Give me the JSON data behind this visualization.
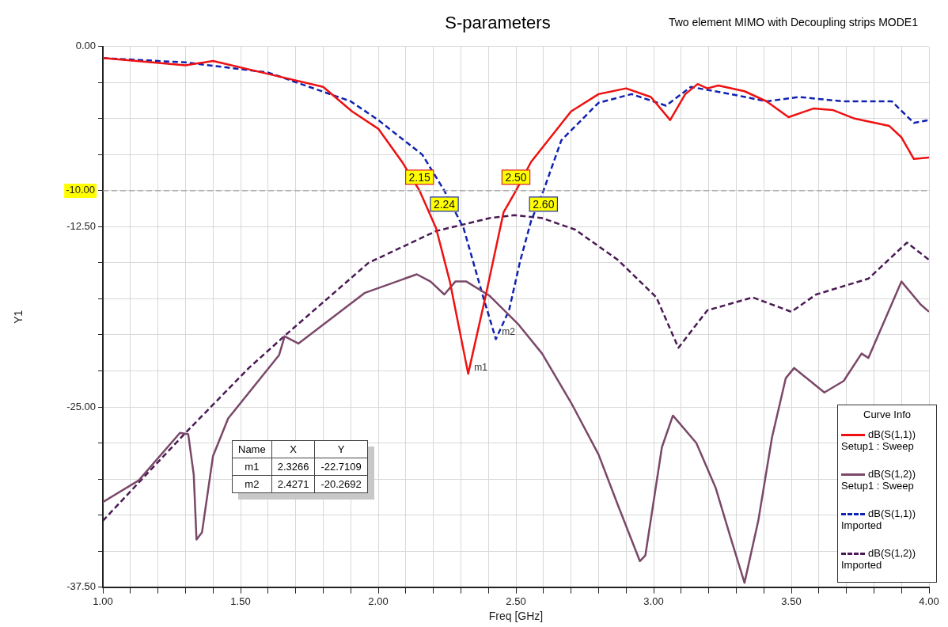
{
  "chart_data": {
    "type": "line",
    "title": "S-parameters",
    "subtitle": "Two element MIMO with Decoupling strips MODE1",
    "xlabel": "Freq [GHz]",
    "ylabel": "Y1",
    "legend_title": "Curve Info",
    "legend": "bottom right",
    "grid": true,
    "xlim": [
      1,
      4
    ],
    "ylim": [
      -37.5,
      0
    ],
    "xticks": [
      {
        "value": 1,
        "label": "1.00"
      },
      {
        "value": 1.1,
        "label": null
      },
      {
        "value": 1.2,
        "label": null
      },
      {
        "value": 1.3,
        "label": null
      },
      {
        "value": 1.4,
        "label": null
      },
      {
        "value": 1.5,
        "label": "1.50"
      },
      {
        "value": 1.6,
        "label": null
      },
      {
        "value": 1.7,
        "label": null
      },
      {
        "value": 1.8,
        "label": null
      },
      {
        "value": 1.9,
        "label": null
      },
      {
        "value": 2,
        "label": "2.00"
      },
      {
        "value": 2.1,
        "label": null
      },
      {
        "value": 2.2,
        "label": null
      },
      {
        "value": 2.3,
        "label": null
      },
      {
        "value": 2.4,
        "label": null
      },
      {
        "value": 2.5,
        "label": "2.50"
      },
      {
        "value": 2.6,
        "label": null
      },
      {
        "value": 2.7,
        "label": null
      },
      {
        "value": 2.8,
        "label": null
      },
      {
        "value": 2.9,
        "label": null
      },
      {
        "value": 3,
        "label": "3.00"
      },
      {
        "value": 3.1,
        "label": null
      },
      {
        "value": 3.2,
        "label": null
      },
      {
        "value": 3.3,
        "label": null
      },
      {
        "value": 3.4,
        "label": null
      },
      {
        "value": 3.5,
        "label": "3.50"
      },
      {
        "value": 3.6,
        "label": null
      },
      {
        "value": 3.7,
        "label": null
      },
      {
        "value": 3.8,
        "label": null
      },
      {
        "value": 3.9,
        "label": null
      },
      {
        "value": 4,
        "label": "4.00"
      }
    ],
    "yticks": [
      {
        "value": 0,
        "label": "0.00"
      },
      {
        "value": -2.5,
        "label": null
      },
      {
        "value": -5,
        "label": null
      },
      {
        "value": -7.5,
        "label": null
      },
      {
        "value": -10,
        "label": null
      },
      {
        "value": -12.5,
        "label": "-12.50"
      },
      {
        "value": -15,
        "label": null
      },
      {
        "value": -17.5,
        "label": null
      },
      {
        "value": -20,
        "label": null
      },
      {
        "value": -22.5,
        "label": null
      },
      {
        "value": -25,
        "label": "-25.00"
      },
      {
        "value": -27.5,
        "label": null
      },
      {
        "value": -30,
        "label": null
      },
      {
        "value": -32.5,
        "label": null
      },
      {
        "value": -35,
        "label": null
      },
      {
        "value": -37.5,
        "label": "-37.50"
      }
    ],
    "ref_lines": [
      {
        "axis": "y",
        "value": -10,
        "label": "-10.00",
        "color": "#a0a0a0",
        "line_style": "dashed"
      }
    ],
    "annotations": [
      {
        "text": "2.15",
        "x": 2.15,
        "y": -10
      },
      {
        "text": "2.24",
        "x": 2.24,
        "y": -10
      },
      {
        "text": "2.50",
        "x": 2.5,
        "y": -10
      },
      {
        "text": "2.60",
        "x": 2.6,
        "y": -10
      },
      {
        "text": "m1",
        "x": 2.3266,
        "y": -22.7109
      },
      {
        "text": "m2",
        "x": 2.4271,
        "y": -20.2692
      },
      "Name",
      "X",
      "Y",
      "m1",
      "2.3266",
      "-22.7109",
      "m2",
      "2.4271",
      "-20.2692"
    ],
    "series": [
      {
        "name": "dB(S(1,1))\nSetup1 : Sweep",
        "color": "#ee1111",
        "line_style": "solid",
        "x": [
          1,
          1.3,
          1.4,
          1.6,
          1.8,
          1.905,
          2,
          2.09,
          2.15,
          2.21,
          2.26,
          2.3266,
          2.39,
          2.455,
          2.5,
          2.555,
          2.7,
          2.8,
          2.9,
          2.99,
          3.06,
          3.115,
          3.16,
          3.195,
          3.235,
          3.33,
          3.41,
          3.49,
          3.58,
          3.65,
          3.73,
          3.855,
          3.9,
          3.945,
          4
        ],
        "values": [
          -0.8,
          -1.3,
          -1,
          -1.9,
          -2.8,
          -4.5,
          -5.7,
          -8.1,
          -10,
          -12.6,
          -16.3,
          -22.7,
          -17.3,
          -11.5,
          -10,
          -8,
          -4.5,
          -3.3,
          -2.9,
          -3.5,
          -5.1,
          -3.3,
          -2.6,
          -2.9,
          -2.7,
          -3.1,
          -3.8,
          -4.9,
          -4.3,
          -4.4,
          -5,
          -5.5,
          -6.3,
          -7.8,
          -7.7
        ]
      },
      {
        "name": "dB(S(1,2))\nSetup1 : Sweep",
        "color": "#7a4868",
        "line_style": "solid",
        "x": [
          1,
          1.13,
          1.28,
          1.31,
          1.33,
          1.34,
          1.36,
          1.4,
          1.455,
          1.64,
          1.66,
          1.71,
          1.95,
          2.14,
          2.19,
          2.24,
          2.28,
          2.32,
          2.405,
          2.51,
          2.595,
          2.7,
          2.8,
          2.87,
          2.95,
          2.97,
          3.03,
          3.07,
          3.155,
          3.225,
          3.28,
          3.33,
          3.38,
          3.43,
          3.48,
          3.51,
          3.62,
          3.69,
          3.755,
          3.78,
          3.9,
          3.97,
          4
        ],
        "values": [
          -31.6,
          -30.1,
          -26.8,
          -26.9,
          -29.7,
          -34.2,
          -33.7,
          -28.4,
          -25.8,
          -21.4,
          -20.1,
          -20.6,
          -17.1,
          -15.8,
          -16.3,
          -17.2,
          -16.3,
          -16.3,
          -17.3,
          -19.3,
          -21.3,
          -24.7,
          -28.3,
          -31.8,
          -35.7,
          -35.3,
          -27.8,
          -25.6,
          -27.5,
          -30.6,
          -34.1,
          -37.2,
          -32.9,
          -27.1,
          -23,
          -22.3,
          -24,
          -23.2,
          -21.3,
          -21.6,
          -16.3,
          -17.9,
          -18.4
        ]
      },
      {
        "name": "dB(S(1,1))\nImported",
        "color": "#1022b0",
        "line_style": "dashed",
        "x": [
          1,
          1.3,
          1.6,
          1.9,
          2,
          2.16,
          2.24,
          2.31,
          2.38,
          2.4271,
          2.475,
          2.515,
          2.555,
          2.6,
          2.665,
          2.8,
          2.92,
          3.045,
          3.135,
          3.28,
          3.41,
          3.53,
          3.685,
          3.865,
          3.945,
          4
        ],
        "values": [
          -0.8,
          -1.1,
          -1.8,
          -3.8,
          -5.1,
          -7.5,
          -10,
          -12.6,
          -17.3,
          -20.3,
          -18.3,
          -14.9,
          -12.1,
          -10,
          -6.5,
          -3.9,
          -3.3,
          -4.1,
          -2.8,
          -3.3,
          -3.8,
          -3.5,
          -3.8,
          -3.8,
          -5.3,
          -5.1
        ]
      },
      {
        "name": "dB(S(1,2))\nImported",
        "color": "#4a1a55",
        "line_style": "dashed",
        "x": [
          1,
          1.295,
          1.53,
          1.67,
          1.965,
          2.21,
          2.405,
          2.495,
          2.595,
          2.715,
          2.87,
          3.01,
          3.09,
          3.195,
          3.36,
          3.5,
          3.59,
          3.78,
          3.92,
          4
        ],
        "values": [
          -32.9,
          -26.9,
          -22.3,
          -19.9,
          -15,
          -12.8,
          -11.9,
          -11.7,
          -11.9,
          -12.7,
          -14.8,
          -17.4,
          -20.9,
          -18.3,
          -17.4,
          -18.4,
          -17.2,
          -16.1,
          -13.6,
          -14.8
        ]
      }
    ]
  }
}
